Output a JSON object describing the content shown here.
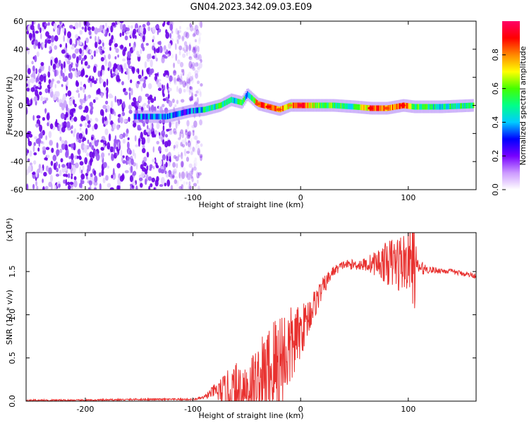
{
  "title": "GN04.2023.342.09.03.E09",
  "chart_data": [
    {
      "type": "heatmap",
      "name": "spectrogram",
      "xlabel": "Height of straight line (km)",
      "ylabel": "Frequency (Hz)",
      "xlim": [
        -255,
        163
      ],
      "ylim": [
        -60,
        60
      ],
      "xticks": [
        -200,
        -100,
        0,
        100
      ],
      "xtick_labels": [
        "-200",
        "-100",
        "0",
        "100"
      ],
      "yticks": [
        -60,
        -40,
        -20,
        0,
        20,
        40,
        60
      ],
      "ytick_labels": [
        "-60",
        "-40",
        "-20",
        "0",
        "20",
        "40",
        "60"
      ],
      "noise_region_x": [
        -255,
        -100
      ],
      "signal_band": [
        {
          "x": -155,
          "y": -8,
          "amp": 0.3
        },
        {
          "x": -140,
          "y": -8,
          "amp": 0.35
        },
        {
          "x": -125,
          "y": -8,
          "amp": 0.35
        },
        {
          "x": -103,
          "y": -4,
          "amp": 0.3
        },
        {
          "x": -90,
          "y": -3,
          "amp": 0.45
        },
        {
          "x": -75,
          "y": 0,
          "amp": 0.5
        },
        {
          "x": -65,
          "y": 4,
          "amp": 0.45
        },
        {
          "x": -55,
          "y": 2,
          "amp": 0.55
        },
        {
          "x": -50,
          "y": 8,
          "amp": 0.4
        },
        {
          "x": -40,
          "y": 1,
          "amp": 0.8
        },
        {
          "x": -30,
          "y": -1,
          "amp": 0.85
        },
        {
          "x": -20,
          "y": -3,
          "amp": 0.8
        },
        {
          "x": -10,
          "y": 0,
          "amp": 0.75
        },
        {
          "x": 0,
          "y": 0,
          "amp": 0.9
        },
        {
          "x": 15,
          "y": 0,
          "amp": 0.6
        },
        {
          "x": 30,
          "y": 0,
          "amp": 0.55
        },
        {
          "x": 50,
          "y": -1,
          "amp": 0.5
        },
        {
          "x": 65,
          "y": -2,
          "amp": 0.85
        },
        {
          "x": 80,
          "y": -2,
          "amp": 0.8
        },
        {
          "x": 95,
          "y": 0,
          "amp": 0.85
        },
        {
          "x": 105,
          "y": -1,
          "amp": 0.55
        },
        {
          "x": 130,
          "y": -1,
          "amp": 0.45
        },
        {
          "x": 160,
          "y": 0,
          "amp": 0.5
        }
      ],
      "colorbar": {
        "label": "Normalized spectral amplitude",
        "range": [
          0.0,
          1.0
        ],
        "ticks": [
          0.0,
          0.2,
          0.4,
          0.6,
          0.8
        ],
        "tick_labels": [
          "0.0",
          "0.2",
          "0.4",
          "0.6",
          "0.8"
        ],
        "colors": [
          "#ffffff",
          "#cc99ff",
          "#7700ff",
          "#0000ff",
          "#00ccff",
          "#00ff88",
          "#44ff00",
          "#ffff00",
          "#ff8800",
          "#ff0000",
          "#ff0066"
        ]
      }
    },
    {
      "type": "line",
      "name": "snr",
      "xlabel": "Height of straight line (km)",
      "ylabel": "SNR (10 * v/v)",
      "scale_label": "(x10⁴)",
      "xlim": [
        -255,
        163
      ],
      "ylim": [
        0.0,
        1.95
      ],
      "xticks": [
        -200,
        -100,
        0,
        100
      ],
      "xtick_labels": [
        "-200",
        "-100",
        "0",
        "100"
      ],
      "yticks": [
        0.0,
        0.5,
        1.0,
        1.5
      ],
      "ytick_labels": [
        "0.0",
        "0.5",
        "1.0",
        "1.5"
      ],
      "color": "#e8312f",
      "envelope": {
        "x": [
          -255,
          -200,
          -150,
          -100,
          -90,
          -80,
          -70,
          -60,
          -50,
          -40,
          -30,
          -20,
          -10,
          0,
          10,
          20,
          30,
          40,
          50,
          60,
          70,
          80,
          90,
          100,
          106,
          108,
          120,
          140,
          163
        ],
        "base": [
          0.01,
          0.01,
          0.02,
          0.02,
          0.04,
          0.12,
          0.08,
          0.1,
          0.15,
          0.2,
          0.3,
          0.45,
          0.6,
          0.8,
          1.05,
          1.3,
          1.5,
          1.58,
          1.58,
          1.58,
          1.6,
          1.6,
          1.6,
          1.62,
          1.6,
          1.55,
          1.52,
          1.5,
          1.45
        ],
        "amp": [
          0.01,
          0.01,
          0.01,
          0.01,
          0.02,
          0.08,
          0.25,
          0.35,
          0.4,
          0.45,
          0.6,
          0.7,
          0.5,
          0.3,
          0.2,
          0.12,
          0.06,
          0.05,
          0.06,
          0.08,
          0.15,
          0.25,
          0.35,
          0.35,
          0.55,
          0.1,
          0.04,
          0.03,
          0.03
        ]
      }
    }
  ]
}
